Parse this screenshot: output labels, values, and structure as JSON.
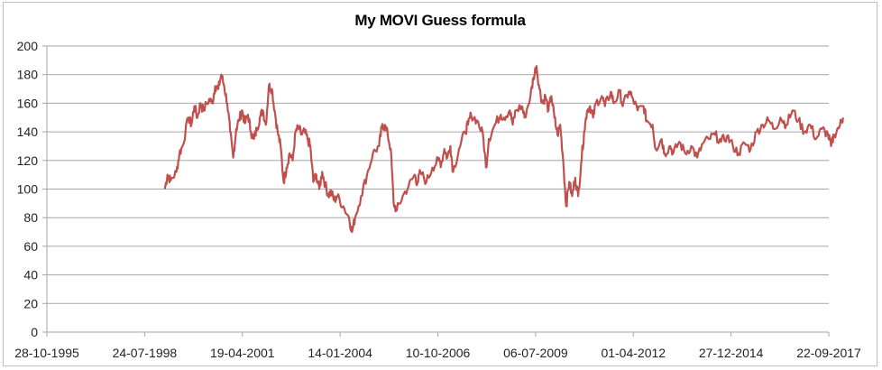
{
  "chart_data": {
    "type": "line",
    "title": "My MOVI Guess formula",
    "xlabel": "",
    "ylabel": "",
    "ylim": [
      0,
      200
    ],
    "yticks": [
      0,
      20,
      40,
      60,
      80,
      100,
      120,
      140,
      160,
      180,
      200
    ],
    "xticks": [
      "28-10-1995",
      "24-07-1998",
      "19-04-2001",
      "14-01-2004",
      "10-10-2006",
      "06-07-2009",
      "01-04-2012",
      "27-12-2014",
      "22-09-2017"
    ],
    "xrange": [
      "28-10-1995",
      "22-09-2017"
    ],
    "grid": "horizontal",
    "legend": "none",
    "line_color": "#C0504D",
    "series": [
      {
        "name": "MOVI Guess",
        "points": [
          [
            "1999-02",
            100
          ],
          [
            "1999-03",
            110
          ],
          [
            "1999-04",
            106
          ],
          [
            "1999-06",
            112
          ],
          [
            "1999-07",
            125
          ],
          [
            "1999-08",
            130
          ],
          [
            "1999-10",
            150
          ],
          [
            "1999-11",
            145
          ],
          [
            "1999-12",
            158
          ],
          [
            "2000-01",
            150
          ],
          [
            "2000-02",
            160
          ],
          [
            "2000-03",
            155
          ],
          [
            "2000-05",
            163
          ],
          [
            "2000-06",
            160
          ],
          [
            "2000-07",
            172
          ],
          [
            "2000-08",
            170
          ],
          [
            "2000-09",
            180
          ],
          [
            "2000-10",
            172
          ],
          [
            "2000-11",
            160
          ],
          [
            "2000-12",
            140
          ],
          [
            "2001-01",
            122
          ],
          [
            "2001-02",
            142
          ],
          [
            "2001-03",
            148
          ],
          [
            "2001-04",
            155
          ],
          [
            "2001-05",
            146
          ],
          [
            "2001-06",
            152
          ],
          [
            "2001-07",
            140
          ],
          [
            "2001-08",
            135
          ],
          [
            "2001-09",
            142
          ],
          [
            "2001-10",
            150
          ],
          [
            "2001-11",
            155
          ],
          [
            "2001-12",
            145
          ],
          [
            "2002-01",
            172
          ],
          [
            "2002-02",
            170
          ],
          [
            "2002-03",
            155
          ],
          [
            "2002-04",
            140
          ],
          [
            "2002-05",
            130
          ],
          [
            "2002-06",
            105
          ],
          [
            "2002-07",
            115
          ],
          [
            "2002-08",
            125
          ],
          [
            "2002-09",
            120
          ],
          [
            "2002-10",
            140
          ],
          [
            "2002-11",
            143
          ],
          [
            "2002-12",
            138
          ],
          [
            "2003-01",
            140
          ],
          [
            "2003-02",
            135
          ],
          [
            "2003-03",
            130
          ],
          [
            "2003-04",
            105
          ],
          [
            "2003-05",
            110
          ],
          [
            "2003-06",
            100
          ],
          [
            "2003-07",
            112
          ],
          [
            "2003-08",
            103
          ],
          [
            "2003-09",
            96
          ],
          [
            "2003-10",
            98
          ],
          [
            "2003-11",
            92
          ],
          [
            "2003-12",
            95
          ],
          [
            "2004-02",
            88
          ],
          [
            "2004-04",
            80
          ],
          [
            "2004-05",
            70
          ],
          [
            "2004-06",
            80
          ],
          [
            "2004-08",
            95
          ],
          [
            "2004-10",
            110
          ],
          [
            "2004-12",
            125
          ],
          [
            "2005-02",
            130
          ],
          [
            "2005-03",
            143
          ],
          [
            "2005-04",
            145
          ],
          [
            "2005-05",
            138
          ],
          [
            "2005-06",
            128
          ],
          [
            "2005-07",
            90
          ],
          [
            "2005-08",
            85
          ],
          [
            "2005-10",
            95
          ],
          [
            "2005-12",
            102
          ],
          [
            "2006-02",
            110
          ],
          [
            "2006-03",
            104
          ],
          [
            "2006-04",
            112
          ],
          [
            "2006-06",
            105
          ],
          [
            "2006-08",
            115
          ],
          [
            "2006-10",
            120
          ],
          [
            "2006-11",
            118
          ],
          [
            "2006-12",
            128
          ],
          [
            "2007-01",
            122
          ],
          [
            "2007-02",
            130
          ],
          [
            "2007-03",
            112
          ],
          [
            "2007-05",
            128
          ],
          [
            "2007-07",
            140
          ],
          [
            "2007-08",
            145
          ],
          [
            "2007-09",
            152
          ],
          [
            "2007-11",
            148
          ],
          [
            "2008-01",
            138
          ],
          [
            "2008-02",
            115
          ],
          [
            "2008-03",
            135
          ],
          [
            "2008-05",
            145
          ],
          [
            "2008-07",
            152
          ],
          [
            "2008-08",
            150
          ],
          [
            "2008-10",
            155
          ],
          [
            "2008-11",
            145
          ],
          [
            "2008-12",
            155
          ],
          [
            "2009-02",
            158
          ],
          [
            "2009-03",
            150
          ],
          [
            "2009-05",
            165
          ],
          [
            "2009-06",
            178
          ],
          [
            "2009-07",
            186
          ],
          [
            "2009-08",
            170
          ],
          [
            "2009-09",
            160
          ],
          [
            "2009-10",
            165
          ],
          [
            "2009-11",
            155
          ],
          [
            "2009-12",
            165
          ],
          [
            "2010-01",
            150
          ],
          [
            "2010-02",
            138
          ],
          [
            "2010-03",
            145
          ],
          [
            "2010-04",
            120
          ],
          [
            "2010-05",
            88
          ],
          [
            "2010-06",
            105
          ],
          [
            "2010-07",
            95
          ],
          [
            "2010-08",
            108
          ],
          [
            "2010-09",
            95
          ],
          [
            "2010-10",
            118
          ],
          [
            "2010-11",
            140
          ],
          [
            "2010-12",
            155
          ],
          [
            "2011-01",
            158
          ],
          [
            "2011-02",
            150
          ],
          [
            "2011-03",
            160
          ],
          [
            "2011-05",
            165
          ],
          [
            "2011-06",
            158
          ],
          [
            "2011-08",
            168
          ],
          [
            "2011-09",
            160
          ],
          [
            "2011-11",
            168
          ],
          [
            "2011-12",
            158
          ],
          [
            "2012-02",
            168
          ],
          [
            "2012-03",
            165
          ],
          [
            "2012-05",
            155
          ],
          [
            "2012-07",
            158
          ],
          [
            "2012-08",
            148
          ],
          [
            "2012-10",
            145
          ],
          [
            "2012-11",
            128
          ],
          [
            "2013-01",
            135
          ],
          [
            "2013-02",
            125
          ],
          [
            "2013-04",
            130
          ],
          [
            "2013-05",
            125
          ],
          [
            "2013-07",
            133
          ],
          [
            "2013-09",
            125
          ],
          [
            "2013-11",
            130
          ],
          [
            "2014-01",
            122
          ],
          [
            "2014-03",
            132
          ],
          [
            "2014-05",
            135
          ],
          [
            "2014-07",
            138
          ],
          [
            "2014-09",
            133
          ],
          [
            "2014-11",
            137
          ],
          [
            "2015-01",
            130
          ],
          [
            "2015-03",
            125
          ],
          [
            "2015-05",
            132
          ],
          [
            "2015-07",
            128
          ],
          [
            "2015-09",
            140
          ],
          [
            "2015-11",
            145
          ],
          [
            "2016-01",
            148
          ],
          [
            "2016-03",
            142
          ],
          [
            "2016-05",
            150
          ],
          [
            "2016-07",
            145
          ],
          [
            "2016-09",
            155
          ],
          [
            "2016-11",
            148
          ],
          [
            "2017-01",
            140
          ],
          [
            "2017-03",
            145
          ],
          [
            "2017-05",
            135
          ],
          [
            "2017-07",
            142
          ],
          [
            "2017-09",
            138
          ],
          [
            "2017-10",
            130
          ],
          [
            "2017-11",
            138
          ],
          [
            "2018-01",
            145
          ],
          [
            "2018-02",
            150
          ]
        ]
      }
    ]
  }
}
